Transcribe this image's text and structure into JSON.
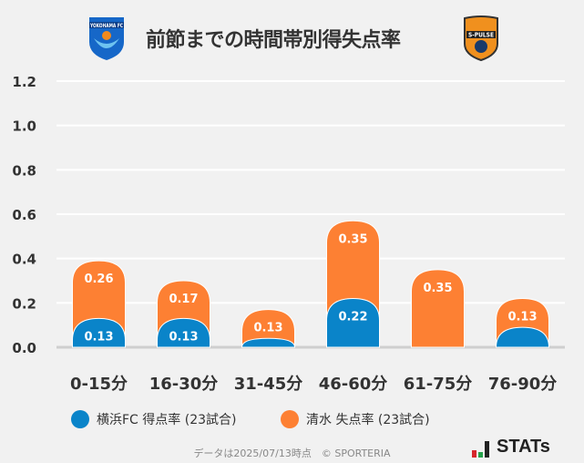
{
  "header": {
    "title": "前節までの時間帯別得失点率",
    "home_logo_text": "YOKOHAMA FC",
    "away_logo_text": "S-PULSE"
  },
  "chart_data": {
    "type": "bar",
    "stacked": true,
    "categories": [
      "0-15分",
      "16-30分",
      "31-45分",
      "46-60分",
      "61-75分",
      "76-90分"
    ],
    "series": [
      {
        "name": "横浜FC 得点率 (23試合)",
        "color": "#0a84c9",
        "values": [
          0.13,
          0.13,
          0.04,
          0.22,
          0,
          0.09
        ],
        "labels": [
          "0.13",
          "0.13",
          "",
          "0.22",
          "",
          ""
        ]
      },
      {
        "name": "清水 失点率 (23試合)",
        "color": "#fd8033",
        "values": [
          0.26,
          0.17,
          0.13,
          0.35,
          0.35,
          0.13
        ],
        "labels": [
          "0.26",
          "0.17",
          "0.13",
          "0.35",
          "0.35",
          "0.13"
        ]
      }
    ],
    "yticks": [
      "0.0",
      "0.2",
      "0.4",
      "0.6",
      "0.8",
      "1.0",
      "1.2"
    ],
    "ylim": [
      0,
      1.2
    ],
    "grid": true,
    "legend": "bottom"
  },
  "footer": {
    "note": "データは2025/07/13時点　© SPORTERIA",
    "brand": "STATs"
  }
}
